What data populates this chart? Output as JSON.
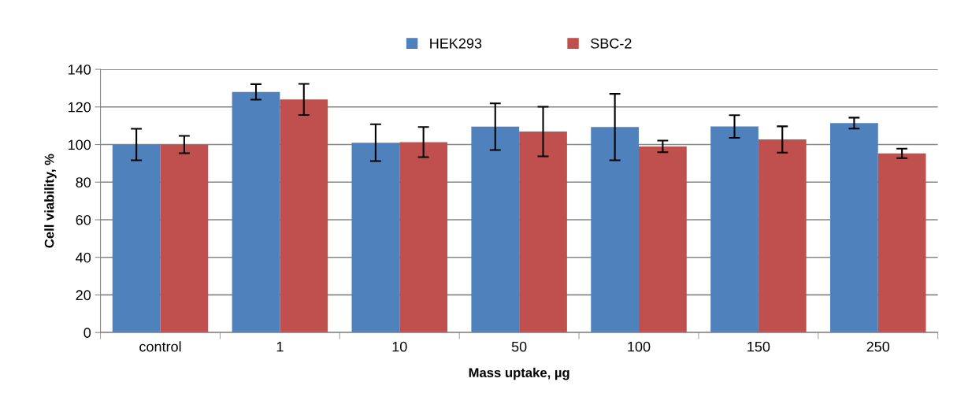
{
  "chart_data": {
    "type": "bar",
    "xlabel": "Mass uptake, µg",
    "ylabel": "Cell viability, %",
    "categories": [
      "control",
      "1",
      "10",
      "50",
      "100",
      "150",
      "250"
    ],
    "series": [
      {
        "name": "HEK293",
        "color": "#4f81bd",
        "values": [
          100,
          128,
          101,
          109.5,
          109.3,
          109.6,
          111.4
        ],
        "errors": [
          8.4,
          4.1,
          9.8,
          12.4,
          17.7,
          6,
          2.9
        ]
      },
      {
        "name": "SBC-2",
        "color": "#c0504d",
        "values": [
          100,
          124,
          101.3,
          106.9,
          99,
          102.7,
          95.3
        ],
        "errors": [
          4.6,
          8.3,
          8,
          13.2,
          3.1,
          7,
          2.5
        ]
      }
    ],
    "ylim": [
      0,
      140
    ],
    "yticks": [
      0,
      20,
      40,
      60,
      80,
      100,
      120,
      140
    ],
    "grid": "y",
    "legend": "top"
  }
}
